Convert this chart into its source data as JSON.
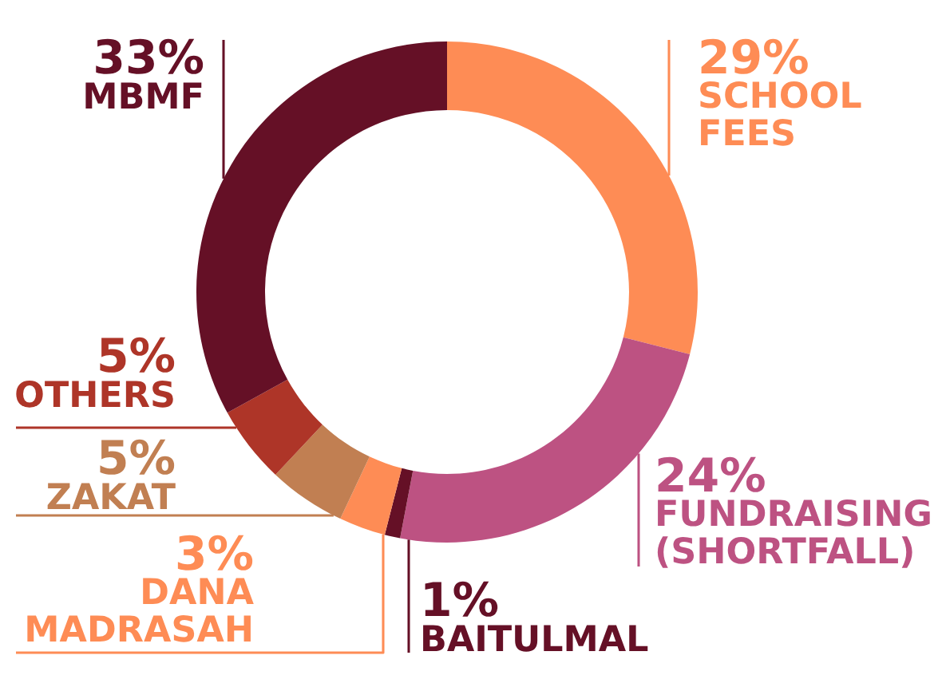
{
  "chart_data": {
    "type": "donut",
    "categories": [
      "SCHOOL\nFEES",
      "FUNDRAISING\n(SHORTFALL)",
      "BAITULMAL",
      "DANA\nMADRASAH",
      "ZAKAT",
      "OTHERS",
      "MBMF"
    ],
    "values": [
      29,
      24,
      1,
      3,
      5,
      5,
      33
    ],
    "value_labels": [
      "29%",
      "24%",
      "1%",
      "3%",
      "5%",
      "5%",
      "33%"
    ],
    "colors": [
      "#fe8c55",
      "#bd5282",
      "#651026",
      "#fe8c55",
      "#c17f52",
      "#ae3528",
      "#651026"
    ]
  }
}
